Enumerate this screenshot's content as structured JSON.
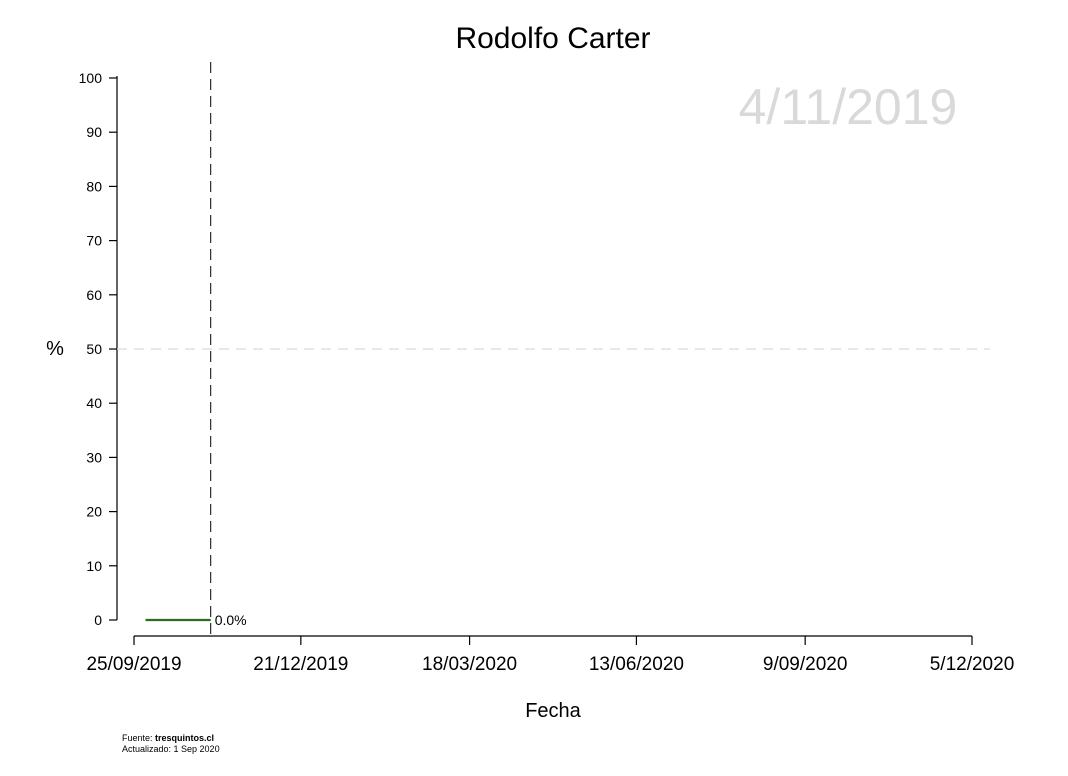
{
  "chart_data": {
    "type": "line",
    "title": "Rodolfo Carter",
    "xlabel": "Fecha",
    "ylabel": "%",
    "watermark_date": "4/11/2019",
    "x_range": [
      "2019-09-25",
      "2020-12-05"
    ],
    "ylim": [
      0,
      100
    ],
    "y_ticks": [
      0,
      10,
      20,
      30,
      40,
      50,
      60,
      70,
      80,
      90,
      100
    ],
    "x_ticks": [
      {
        "date": "2019-09-25",
        "label": "25/09/2019"
      },
      {
        "date": "2019-12-21",
        "label": "21/12/2019"
      },
      {
        "date": "2020-03-18",
        "label": "18/03/2020"
      },
      {
        "date": "2020-06-13",
        "label": "13/06/2020"
      },
      {
        "date": "2020-09-09",
        "label": "9/09/2020"
      },
      {
        "date": "2020-12-05",
        "label": "5/12/2020"
      }
    ],
    "reference_line_y": 50,
    "current_date_line": "2019-11-04",
    "series": [
      {
        "color": "#2e6b1f",
        "points": [
          {
            "x": "2019-10-01",
            "y": 0
          },
          {
            "x": "2019-11-04",
            "y": 0
          }
        ],
        "end_label": "0.0%"
      }
    ],
    "grid": false
  },
  "footer": {
    "source_prefix": "Fuente: ",
    "source_name": "tresquintos.cl",
    "updated": "Actualizado: 1 Sep 2020"
  }
}
